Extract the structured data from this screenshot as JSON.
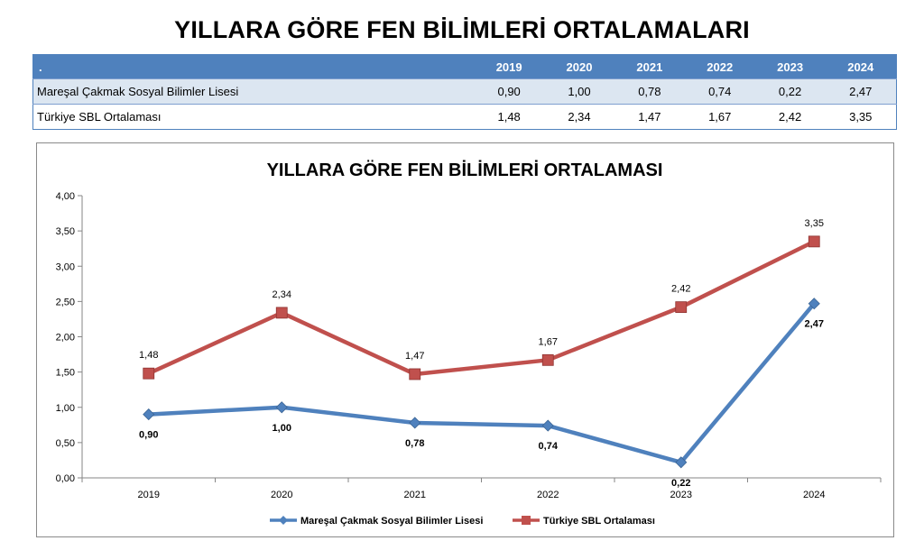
{
  "page": {
    "title": "YILLARA GÖRE FEN BİLİMLERİ ORTALAMALARI"
  },
  "table": {
    "corner": ".",
    "columns": [
      "2019",
      "2020",
      "2021",
      "2022",
      "2023",
      "2024"
    ],
    "rows": [
      {
        "label": "Mareşal Çakmak Sosyal Bilimler Lisesi",
        "values": [
          "0,90",
          "1,00",
          "0,78",
          "0,74",
          "0,22",
          "2,47"
        ]
      },
      {
        "label": "Türkiye SBL Ortalaması",
        "values": [
          "1,48",
          "2,34",
          "1,47",
          "1,67",
          "2,42",
          "3,35"
        ]
      }
    ]
  },
  "chart_data": {
    "type": "line",
    "title": "YILLARA GÖRE FEN BİLİMLERİ ORTALAMASI",
    "categories": [
      "2019",
      "2020",
      "2021",
      "2022",
      "2023",
      "2024"
    ],
    "ylim": [
      0,
      4
    ],
    "yticks": [
      "0,00",
      "0,50",
      "1,00",
      "1,50",
      "2,00",
      "2,50",
      "3,00",
      "3,50",
      "4,00"
    ],
    "grid": false,
    "legend_position": "bottom",
    "series": [
      {
        "name": "Mareşal Çakmak Sosyal Bilimler Lisesi",
        "values": [
          0.9,
          1.0,
          0.78,
          0.74,
          0.22,
          2.47
        ],
        "labels": [
          "0,90",
          "1,00",
          "0,78",
          "0,74",
          "0,22",
          "2,47"
        ],
        "color": "#4f81bd",
        "marker": "diamond"
      },
      {
        "name": "Türkiye SBL Ortalaması",
        "values": [
          1.48,
          2.34,
          1.47,
          1.67,
          2.42,
          3.35
        ],
        "labels": [
          "1,48",
          "2,34",
          "1,47",
          "1,67",
          "2,42",
          "3,35"
        ],
        "color": "#c0504d",
        "marker": "square"
      }
    ]
  }
}
